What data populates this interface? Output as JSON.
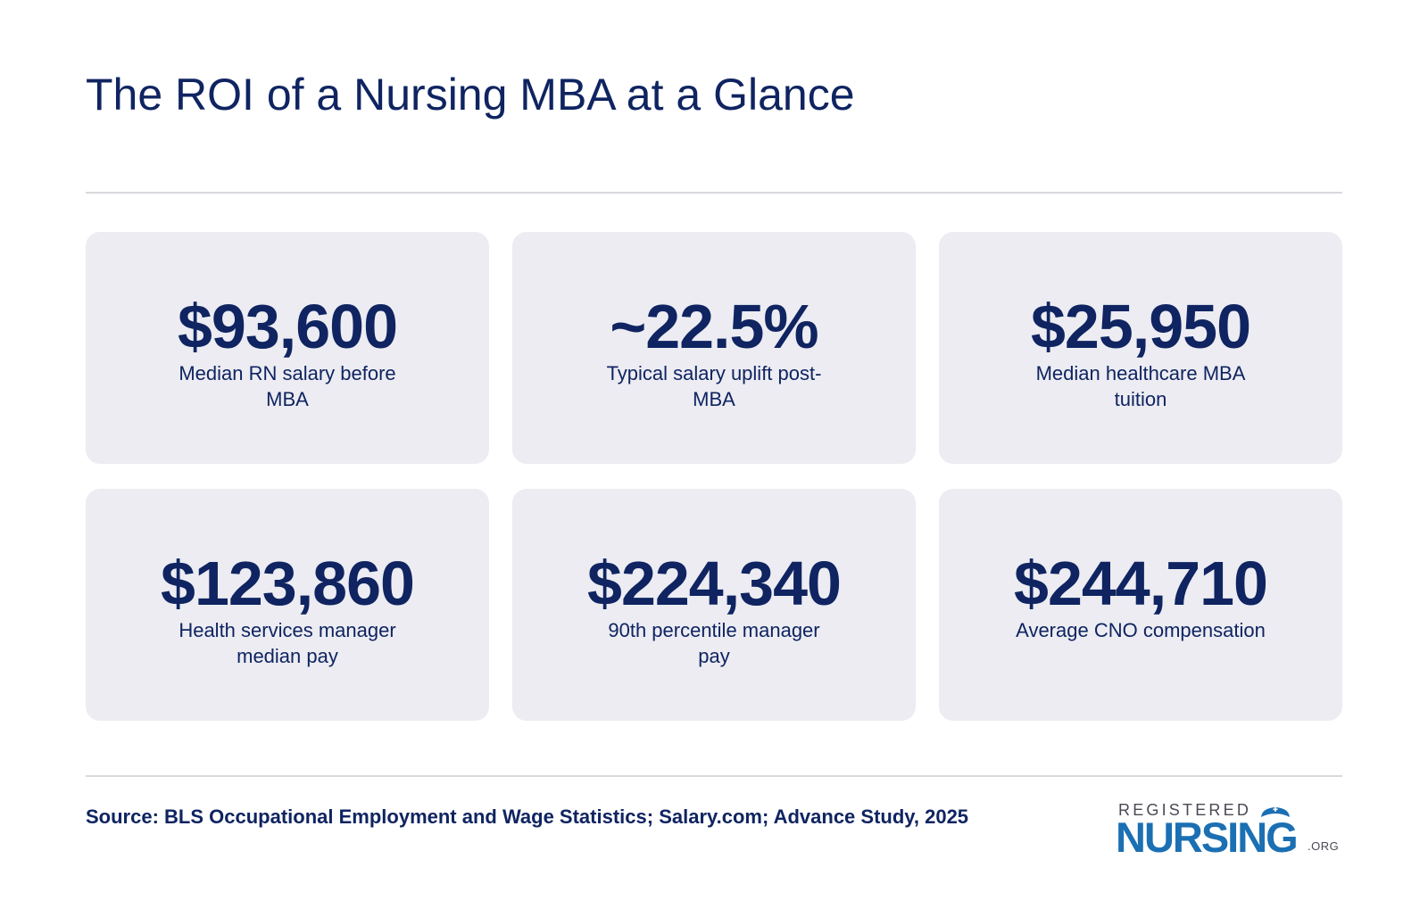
{
  "header": {
    "title": "The ROI of a Nursing MBA at a Glance"
  },
  "stats": [
    {
      "value": "$93,600",
      "label": "Median RN salary before MBA"
    },
    {
      "value": "~22.5%",
      "label": "Typical salary uplift post-MBA"
    },
    {
      "value": "$25,950",
      "label": "Median healthcare MBA tuition"
    },
    {
      "value": "$123,860",
      "label": "Health services manager median pay"
    },
    {
      "value": "$224,340",
      "label": "90th percentile manager pay"
    },
    {
      "value": "$244,710",
      "label": "Average CNO compensation"
    }
  ],
  "footer": {
    "source": "Source: BLS Occupational Employment and Wage Statistics; Salary.com; Advance Study, 2025"
  },
  "logo": {
    "top_text": "REGISTERED",
    "main_text": "NURSING",
    "suffix_text": ".ORG",
    "icon": "nurse-cap-icon"
  },
  "colors": {
    "navy": "#0f2461",
    "card_background": "#ececf2",
    "divider": "#d9d9de",
    "logo_blue": "#1b6fb3"
  }
}
